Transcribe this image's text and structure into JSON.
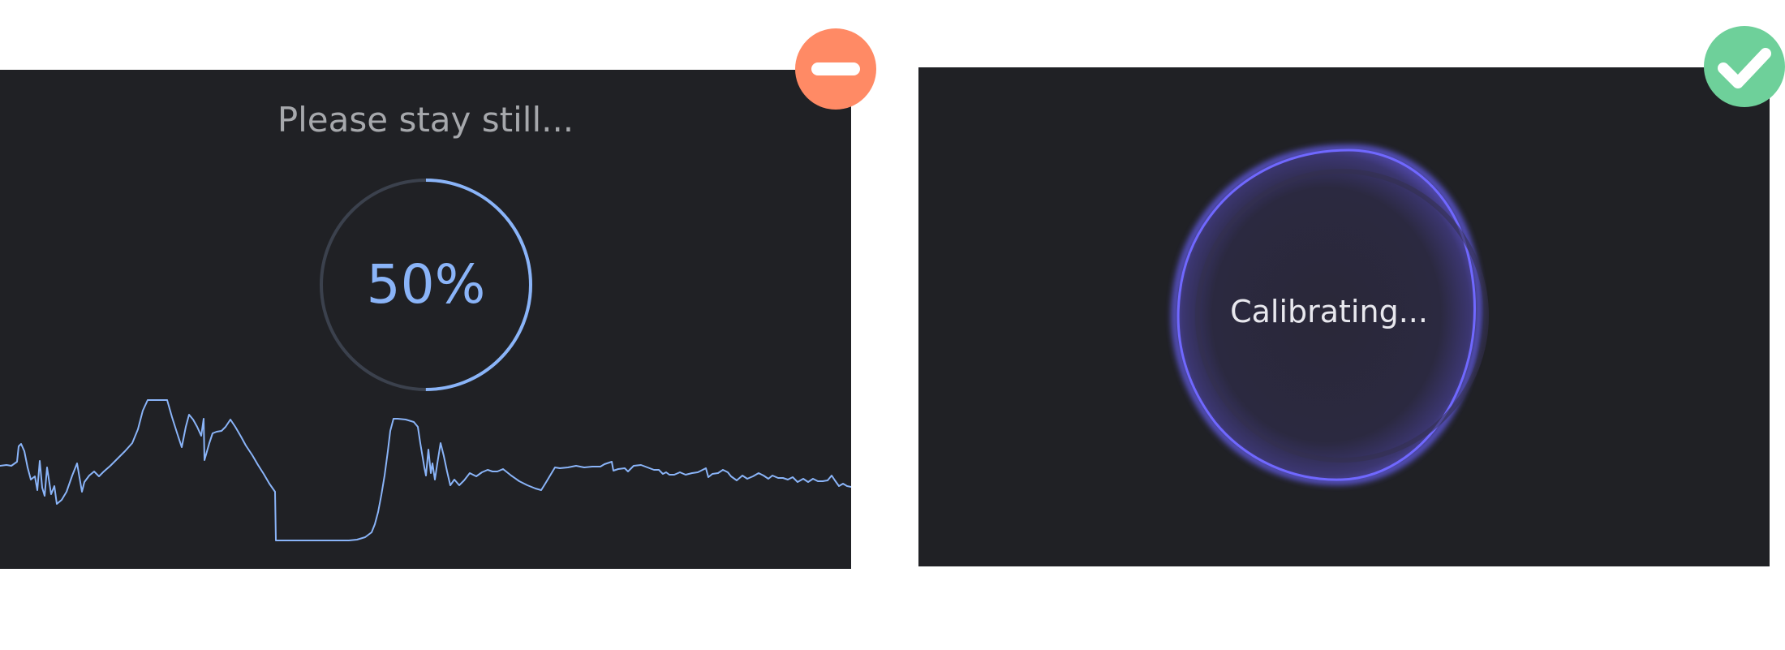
{
  "left_example": {
    "status_text": "Please stay still...",
    "progress_label": "50%",
    "progress_fraction": 0.5,
    "ring_color": "#8ab4f8",
    "ring_track_color": "#3b414d",
    "wave_color": "#8ab4f8",
    "badge_icon": "minus-icon",
    "badge_color": "#ff8a65"
  },
  "right_example": {
    "status_text": "Calibrating...",
    "blob_color": "#6c63ff",
    "badge_icon": "checkmark-icon",
    "badge_color": "#6ed09a"
  }
}
